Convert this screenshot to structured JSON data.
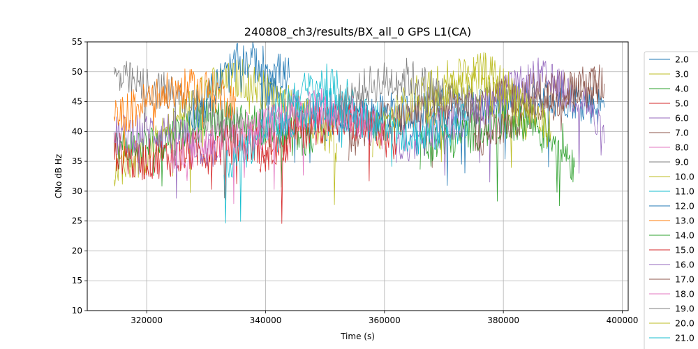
{
  "chart_data": {
    "type": "line",
    "title": "240808_ch3/results/BX_all_0 GPS L1(CA)",
    "xlabel": "Time (s)",
    "ylabel": "CNo dB Hz",
    "xlim": [
      310000,
      401000
    ],
    "ylim": [
      10,
      55
    ],
    "x_ticks": [
      320000,
      340000,
      360000,
      380000,
      400000
    ],
    "x_tick_labels": [
      "320000",
      "340000",
      "360000",
      "380000",
      "400000"
    ],
    "y_ticks": [
      10,
      15,
      20,
      25,
      30,
      35,
      40,
      45,
      50,
      55
    ],
    "y_tick_labels": [
      "10",
      "15",
      "20",
      "25",
      "30",
      "35",
      "40",
      "45",
      "50",
      "55"
    ],
    "grid": true,
    "legend_position": "right",
    "series": [
      {
        "name": "2.0",
        "color": "#1f77b4",
        "x": [
          339000,
          350000,
          360000,
          370000,
          380000,
          390000,
          397000
        ],
        "y": [
          47,
          41,
          43,
          44,
          45,
          46,
          44
        ]
      },
      {
        "name": "3.0",
        "color": "#bcbd22",
        "x": [
          314500,
          320000,
          330000,
          336000,
          345000,
          352000
        ],
        "y": [
          34,
          36,
          47,
          49,
          44,
          38
        ]
      },
      {
        "name": "4.0",
        "color": "#2ca02c",
        "x": [
          314500,
          322000,
          330000,
          340000,
          348000
        ],
        "y": [
          37,
          38,
          42,
          41,
          38
        ]
      },
      {
        "name": "5.0",
        "color": "#d62728",
        "x": [
          314500,
          318000,
          325000,
          335000,
          344000
        ],
        "y": [
          37,
          35,
          36,
          38,
          38
        ]
      },
      {
        "name": "6.0",
        "color": "#9467bd",
        "x": [
          314500,
          318000,
          325000,
          332000
        ],
        "y": [
          39,
          40,
          40,
          36
        ]
      },
      {
        "name": "7.0",
        "color": "#8c564b",
        "x": [
          354000,
          360000,
          370000,
          380000,
          390000,
          397000
        ],
        "y": [
          38,
          42,
          44,
          46,
          47,
          48
        ]
      },
      {
        "name": "8.0",
        "color": "#e377c2",
        "x": [
          324000,
          330000,
          340000,
          350000,
          357000
        ],
        "y": [
          36,
          38,
          41,
          44,
          42
        ]
      },
      {
        "name": "9.0",
        "color": "#7f7f7f",
        "x": [
          314500,
          318000,
          325000,
          330000,
          336000
        ],
        "y": [
          49,
          48,
          46,
          43,
          40
        ]
      },
      {
        "name": "10.0",
        "color": "#bcbd22",
        "x": [
          358000,
          365000,
          372000,
          378000,
          384000
        ],
        "y": [
          39,
          46,
          49,
          46,
          41
        ]
      },
      {
        "name": "11.0",
        "color": "#17becf",
        "x": [
          333000,
          340000,
          345000,
          350000,
          355000
        ],
        "y": [
          34,
          40,
          46,
          48,
          45
        ]
      },
      {
        "name": "12.0",
        "color": "#1f77b4",
        "x": [
          327000,
          332000,
          336000,
          340000,
          344000
        ],
        "y": [
          42,
          48,
          52,
          51,
          49
        ]
      },
      {
        "name": "13.0",
        "color": "#ff7f0e",
        "x": [
          314500,
          320000,
          325000,
          330000,
          335000
        ],
        "y": [
          42,
          45,
          47,
          47,
          45
        ]
      },
      {
        "name": "14.0",
        "color": "#2ca02c",
        "x": [
          366000,
          372000,
          378000,
          384000,
          390000,
          392000
        ],
        "y": [
          37,
          39,
          41,
          42,
          38,
          34
        ]
      },
      {
        "name": "15.0",
        "color": "#d62728",
        "x": [
          339000,
          345000,
          351000,
          357000,
          362000
        ],
        "y": [
          36,
          40,
          42,
          41,
          38
        ]
      },
      {
        "name": "16.0",
        "color": "#9467bd",
        "x": [
          362000,
          370000,
          378000,
          386000,
          394000,
          397000
        ],
        "y": [
          37,
          41,
          45,
          49,
          45,
          38
        ]
      },
      {
        "name": "17.0",
        "color": "#8c564b",
        "x": [
          375000,
          380000,
          385000,
          390000,
          396000
        ],
        "y": [
          38,
          41,
          44,
          46,
          48
        ]
      },
      {
        "name": "18.0",
        "color": "#e377c2",
        "x": [
          336000,
          342000,
          348000,
          354000,
          360000
        ],
        "y": [
          38,
          42,
          44,
          43,
          40
        ]
      },
      {
        "name": "19.0",
        "color": "#7f7f7f",
        "x": [
          352000,
          358000,
          364000,
          370000,
          376000
        ],
        "y": [
          44,
          48,
          49,
          46,
          43
        ]
      },
      {
        "name": "20.0",
        "color": "#bcbd22",
        "x": [
          367000,
          372000,
          377000,
          382000,
          388000
        ],
        "y": [
          42,
          48,
          50,
          46,
          40
        ]
      },
      {
        "name": "21.0",
        "color": "#17becf",
        "x": [
          342000,
          350000,
          358000,
          366000,
          374000
        ],
        "y": [
          40,
          44,
          42,
          39,
          42
        ]
      }
    ]
  }
}
